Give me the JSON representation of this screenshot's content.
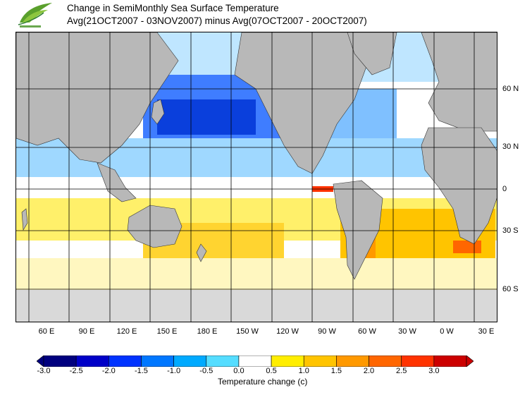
{
  "title": {
    "line1": "Change in SemiMonthly Sea Surface Temperature",
    "line2": "Avg(21OCT2007 - 03NOV2007) minus Avg(07OCT2007 - 20OCT2007)"
  },
  "map": {
    "longitude_labels": [
      "60 E",
      "90 E",
      "120 E",
      "150 E",
      "180 E",
      "150 W",
      "120 W",
      "90 W",
      "60 W",
      "30 W",
      "0 W",
      "30 E"
    ],
    "latitude_labels": [
      "60 N",
      "30 N",
      "0",
      "30 S",
      "60 S"
    ],
    "land_color": "#b8b8b8",
    "ice_color": "#d9d9d9",
    "grid_color": "#000000"
  },
  "colorbar": {
    "title": "Temperature change  (c)",
    "tick_labels": [
      "-3.0",
      "-2.5",
      "-2.0",
      "-1.5",
      "-1.0",
      "-0.5",
      "0.0",
      "0.5",
      "1.0",
      "1.5",
      "2.0",
      "2.5",
      "3.0"
    ],
    "colors": [
      "#00007f",
      "#0000c8",
      "#0033ff",
      "#0077ff",
      "#00aaff",
      "#55ddff",
      "#ffffff",
      "#ffee00",
      "#ffc400",
      "#ff9900",
      "#ff6600",
      "#ff3300",
      "#cc0000"
    ]
  }
}
